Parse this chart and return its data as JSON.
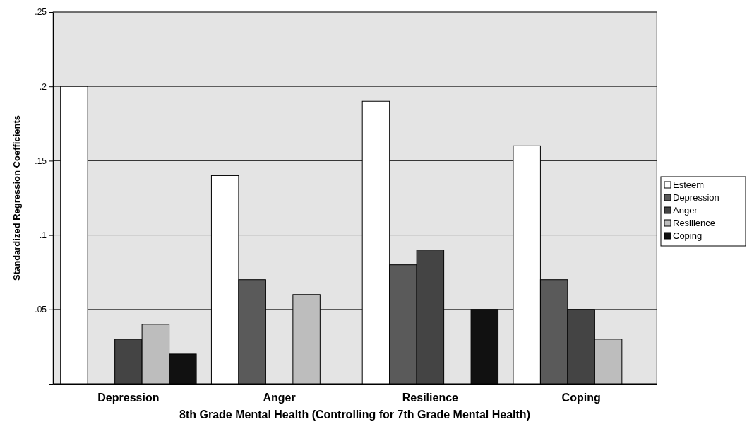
{
  "chart_data": {
    "type": "bar",
    "xlabel": "8th Grade Mental Health (Controlling for 7th Grade Mental Health)",
    "ylabel": "Standardized Regression Coefficients",
    "categories": [
      "Depression",
      "Anger",
      "Resilience",
      "Coping"
    ],
    "series": [
      {
        "name": "Esteem",
        "color": "#ffffff",
        "values": [
          0.2,
          0.14,
          0.19,
          0.16
        ]
      },
      {
        "name": "Depression",
        "color": "#5a5a5a",
        "values": [
          null,
          0.07,
          0.08,
          0.07
        ]
      },
      {
        "name": "Anger",
        "color": "#444444",
        "values": [
          0.03,
          null,
          0.09,
          0.05
        ]
      },
      {
        "name": "Resilience",
        "color": "#bdbdbd",
        "values": [
          0.04,
          0.06,
          null,
          0.03
        ]
      },
      {
        "name": "Coping",
        "color": "#111111",
        "values": [
          0.02,
          null,
          0.05,
          null
        ]
      }
    ],
    "ylim": [
      0,
      0.25
    ],
    "yticks": [
      {
        "value": 0,
        "label": null
      },
      {
        "value": 0.05,
        "label": ".05"
      },
      {
        "value": 0.1,
        "label": ".1"
      },
      {
        "value": 0.15,
        "label": ".15"
      },
      {
        "value": 0.2,
        "label": ".2"
      },
      {
        "value": 0.25,
        "label": ".25"
      }
    ],
    "grid": "y",
    "legend": "right"
  }
}
